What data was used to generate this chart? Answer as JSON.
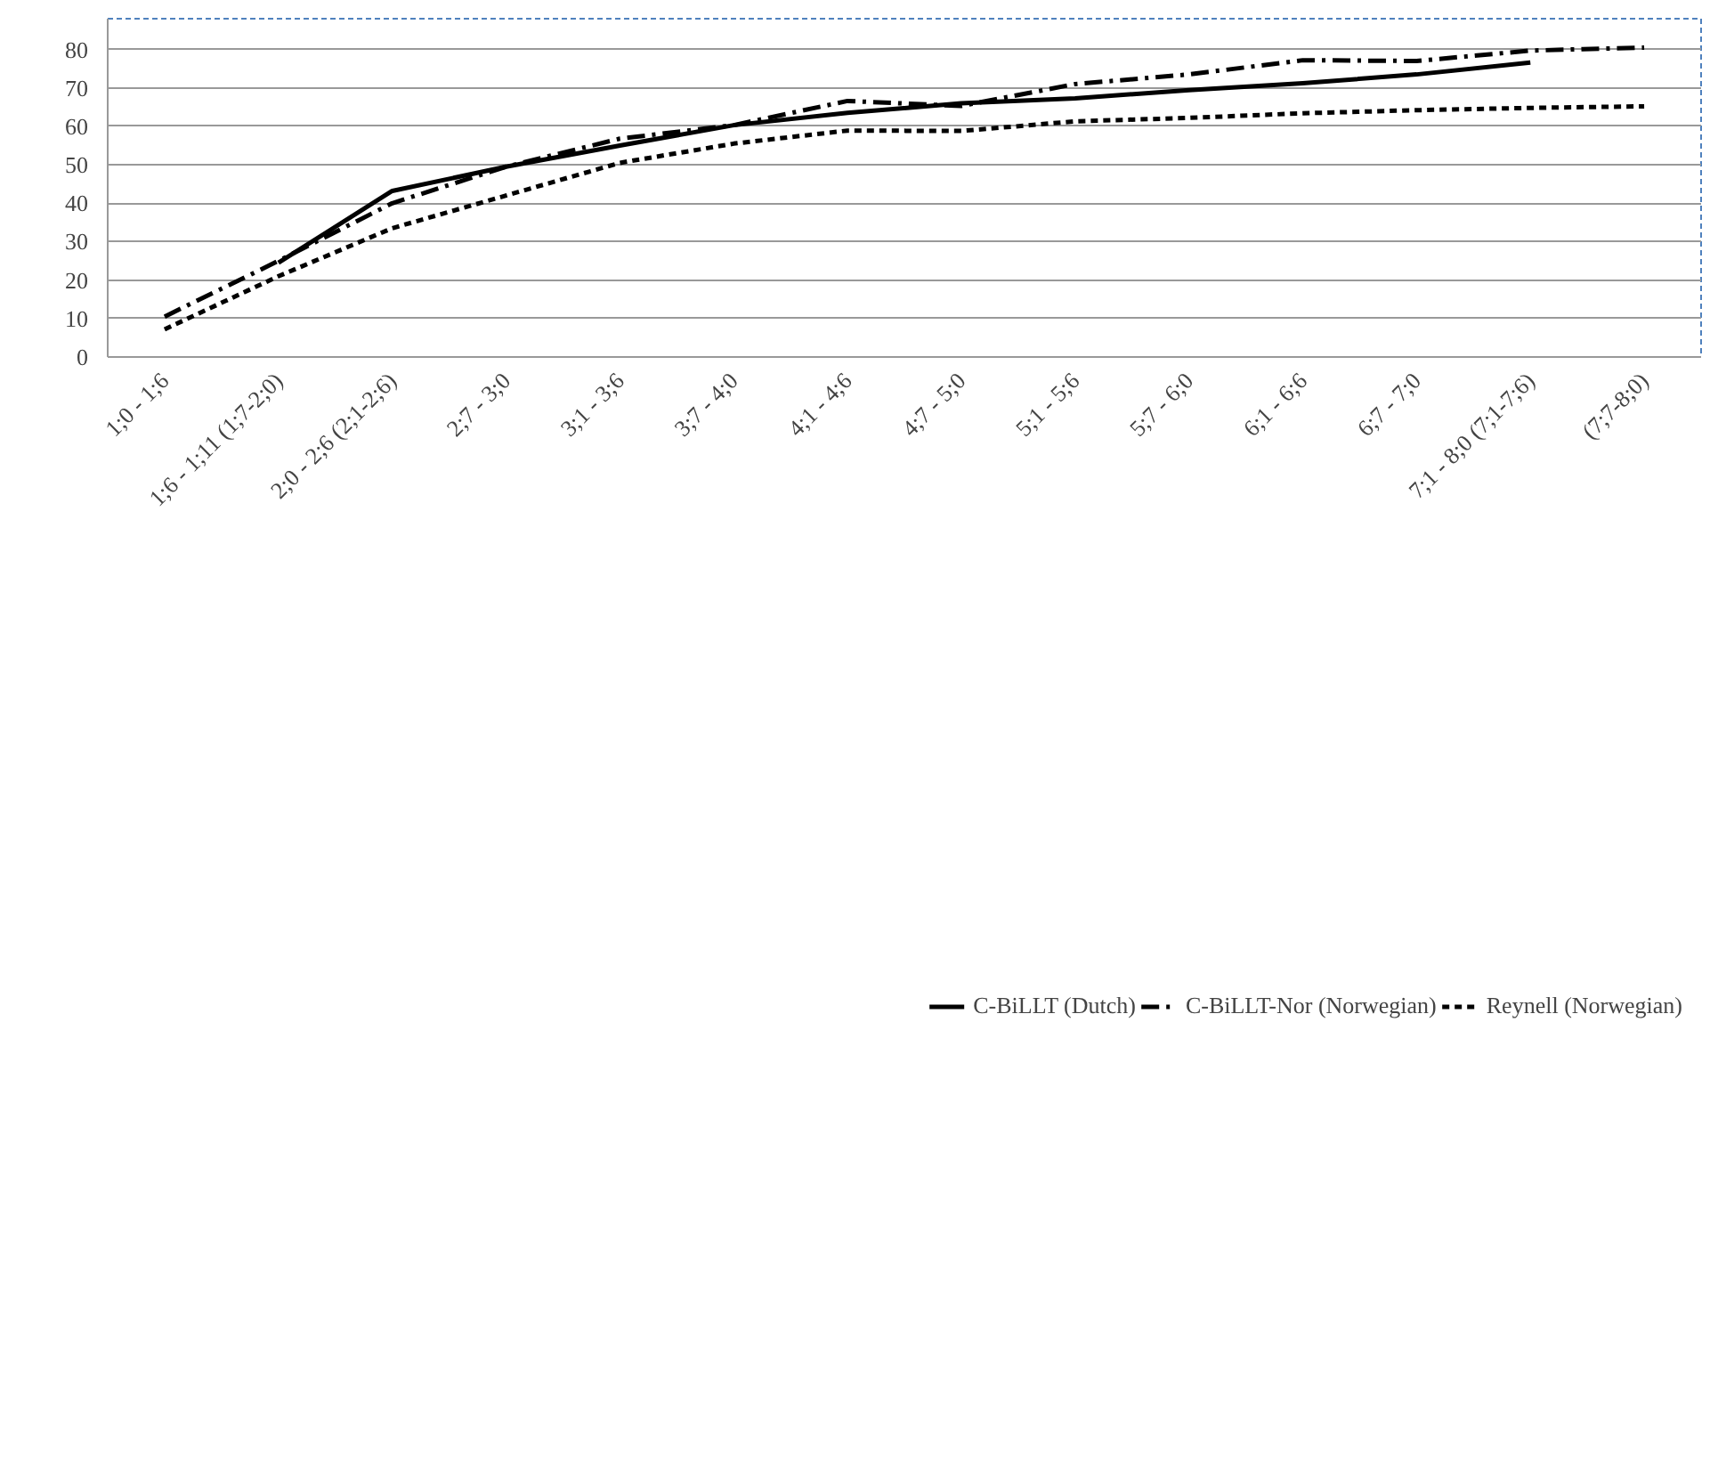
{
  "chart_data": {
    "type": "line",
    "categories": [
      "1;0 - 1;6",
      "1;6 - 1;11 (1;7-2;0)",
      "2;0 - 2;6 (2;1-2;6)",
      "2;7 - 3;0",
      "3;1 - 3;6",
      "3;7 - 4;0",
      "4;1 - 4;6",
      "4;7 - 5;0",
      "5;1 - 5;6",
      "5;7 - 6;0",
      "6;1 - 6;6",
      "6;7 - 7;0",
      "7;1 - 8;0 (7;1-7;6)",
      "(7;7-8;0)"
    ],
    "series": [
      {
        "name": "C-BiLLT (Dutch)",
        "color": "#000000",
        "line_style": "solid",
        "values": [
          null,
          24.5,
          43.2,
          49.5,
          55,
          60.3,
          63.5,
          66,
          67.3,
          69.4,
          71.2,
          73.5,
          76.6,
          null
        ]
      },
      {
        "name": "C-BiLLT-Nor (Norwegian)",
        "color": "#000000",
        "line_style": "dashdot",
        "values": [
          10.5,
          25,
          40,
          49.5,
          56.8,
          60.3,
          66.6,
          65.3,
          71,
          73.5,
          77.2,
          77,
          79.7,
          80.5
        ]
      },
      {
        "name": "Reynell (Norwegian)",
        "color": "#000000",
        "line_style": "dashed",
        "values": [
          7.2,
          21,
          33.5,
          42,
          50.5,
          55.5,
          58.9,
          58.8,
          61.3,
          62.2,
          63.4,
          64.2,
          64.8,
          65.2
        ]
      }
    ],
    "ylim": [
      0,
      88
    ],
    "yticks": [
      0,
      10,
      20,
      30,
      40,
      50,
      60,
      70,
      80
    ],
    "grid": "y",
    "legend": "bottom",
    "marker": "none"
  }
}
